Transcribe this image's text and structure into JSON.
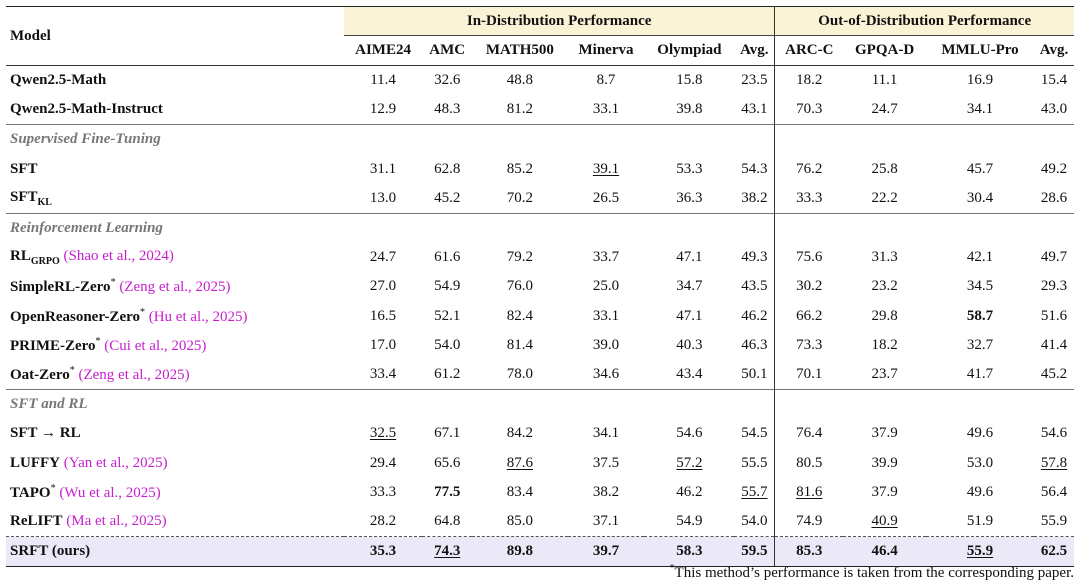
{
  "header": {
    "model": "Model",
    "group_in": "In-Distribution Performance",
    "group_out": "Out-of-Distribution Performance",
    "cols_in": [
      "AIME24",
      "AMC",
      "MATH500",
      "Minerva",
      "Olympiad",
      "Avg."
    ],
    "cols_out": [
      "ARC-C",
      "GPQA-D",
      "MMLU-Pro",
      "Avg."
    ]
  },
  "sections": {
    "sft": "Supervised Fine-Tuning",
    "rl": "Reinforcement Learning",
    "sftrl": "SFT and RL"
  },
  "rows": [
    {
      "name": "Qwen2.5-Math",
      "values": [
        "11.4",
        "32.6",
        "48.8",
        "8.7",
        "15.8",
        "23.5",
        "18.2",
        "11.1",
        "16.9",
        "15.4"
      ]
    },
    {
      "name": "Qwen2.5-Math-Instruct",
      "values": [
        "12.9",
        "48.3",
        "81.2",
        "33.1",
        "39.8",
        "43.1",
        "70.3",
        "24.7",
        "34.1",
        "43.0"
      ]
    },
    {
      "name": "SFT",
      "values": [
        "31.1",
        "62.8",
        "85.2",
        "39.1",
        "53.3",
        "54.3",
        "76.2",
        "25.8",
        "45.7",
        "49.2"
      ]
    },
    {
      "name": "SFT",
      "sub": "KL",
      "values": [
        "13.0",
        "45.2",
        "70.2",
        "26.5",
        "36.3",
        "38.2",
        "33.3",
        "22.2",
        "30.4",
        "28.6"
      ]
    },
    {
      "name": "RL",
      "sub": "GRPO",
      "cite": "(Shao et al., 2024)",
      "values": [
        "24.7",
        "61.6",
        "79.2",
        "33.7",
        "47.1",
        "49.3",
        "75.6",
        "31.3",
        "42.1",
        "49.7"
      ]
    },
    {
      "name": "SimpleRL-Zero",
      "ast": "*",
      "cite": "(Zeng et al., 2025)",
      "values": [
        "27.0",
        "54.9",
        "76.0",
        "25.0",
        "34.7",
        "43.5",
        "30.2",
        "23.2",
        "34.5",
        "29.3"
      ]
    },
    {
      "name": "OpenReasoner-Zero",
      "ast": "*",
      "cite": "(Hu et al., 2025)",
      "values": [
        "16.5",
        "52.1",
        "82.4",
        "33.1",
        "47.1",
        "46.2",
        "66.2",
        "29.8",
        "58.7",
        "51.6"
      ]
    },
    {
      "name": "PRIME-Zero",
      "ast": "*",
      "cite": "(Cui et al., 2025)",
      "values": [
        "17.0",
        "54.0",
        "81.4",
        "39.0",
        "40.3",
        "46.3",
        "73.3",
        "18.2",
        "32.7",
        "41.4"
      ]
    },
    {
      "name": "Oat-Zero",
      "ast": "*",
      "cite": "(Zeng et al., 2025)",
      "values": [
        "33.4",
        "61.2",
        "78.0",
        "34.6",
        "43.4",
        "50.1",
        "70.1",
        "23.7",
        "41.7",
        "45.2"
      ]
    },
    {
      "name": "SFT → RL",
      "values": [
        "32.5",
        "67.1",
        "84.2",
        "34.1",
        "54.6",
        "54.5",
        "76.4",
        "37.9",
        "49.6",
        "54.6"
      ]
    },
    {
      "name": "LUFFY",
      "cite": "(Yan et al., 2025)",
      "values": [
        "29.4",
        "65.6",
        "87.6",
        "37.5",
        "57.2",
        "55.5",
        "80.5",
        "39.9",
        "53.0",
        "57.8"
      ]
    },
    {
      "name": "TAPO",
      "ast": "*",
      "cite": "(Wu et al., 2025)",
      "values": [
        "33.3",
        "77.5",
        "83.4",
        "38.2",
        "46.2",
        "55.7",
        "81.6",
        "37.9",
        "49.6",
        "56.4"
      ]
    },
    {
      "name": "ReLIFT",
      "cite": "(Ma et al., 2025)",
      "values": [
        "28.2",
        "64.8",
        "85.0",
        "37.1",
        "54.9",
        "54.0",
        "74.9",
        "40.9",
        "51.9",
        "55.9"
      ]
    },
    {
      "name": "SRFT (ours)",
      "values": [
        "35.3",
        "74.3",
        "89.8",
        "39.7",
        "58.3",
        "59.5",
        "85.3",
        "46.4",
        "55.9",
        "62.5"
      ]
    }
  ],
  "footnote": {
    "mark": "*",
    "text": "This method’s performance is taken from the corresponding paper."
  }
}
